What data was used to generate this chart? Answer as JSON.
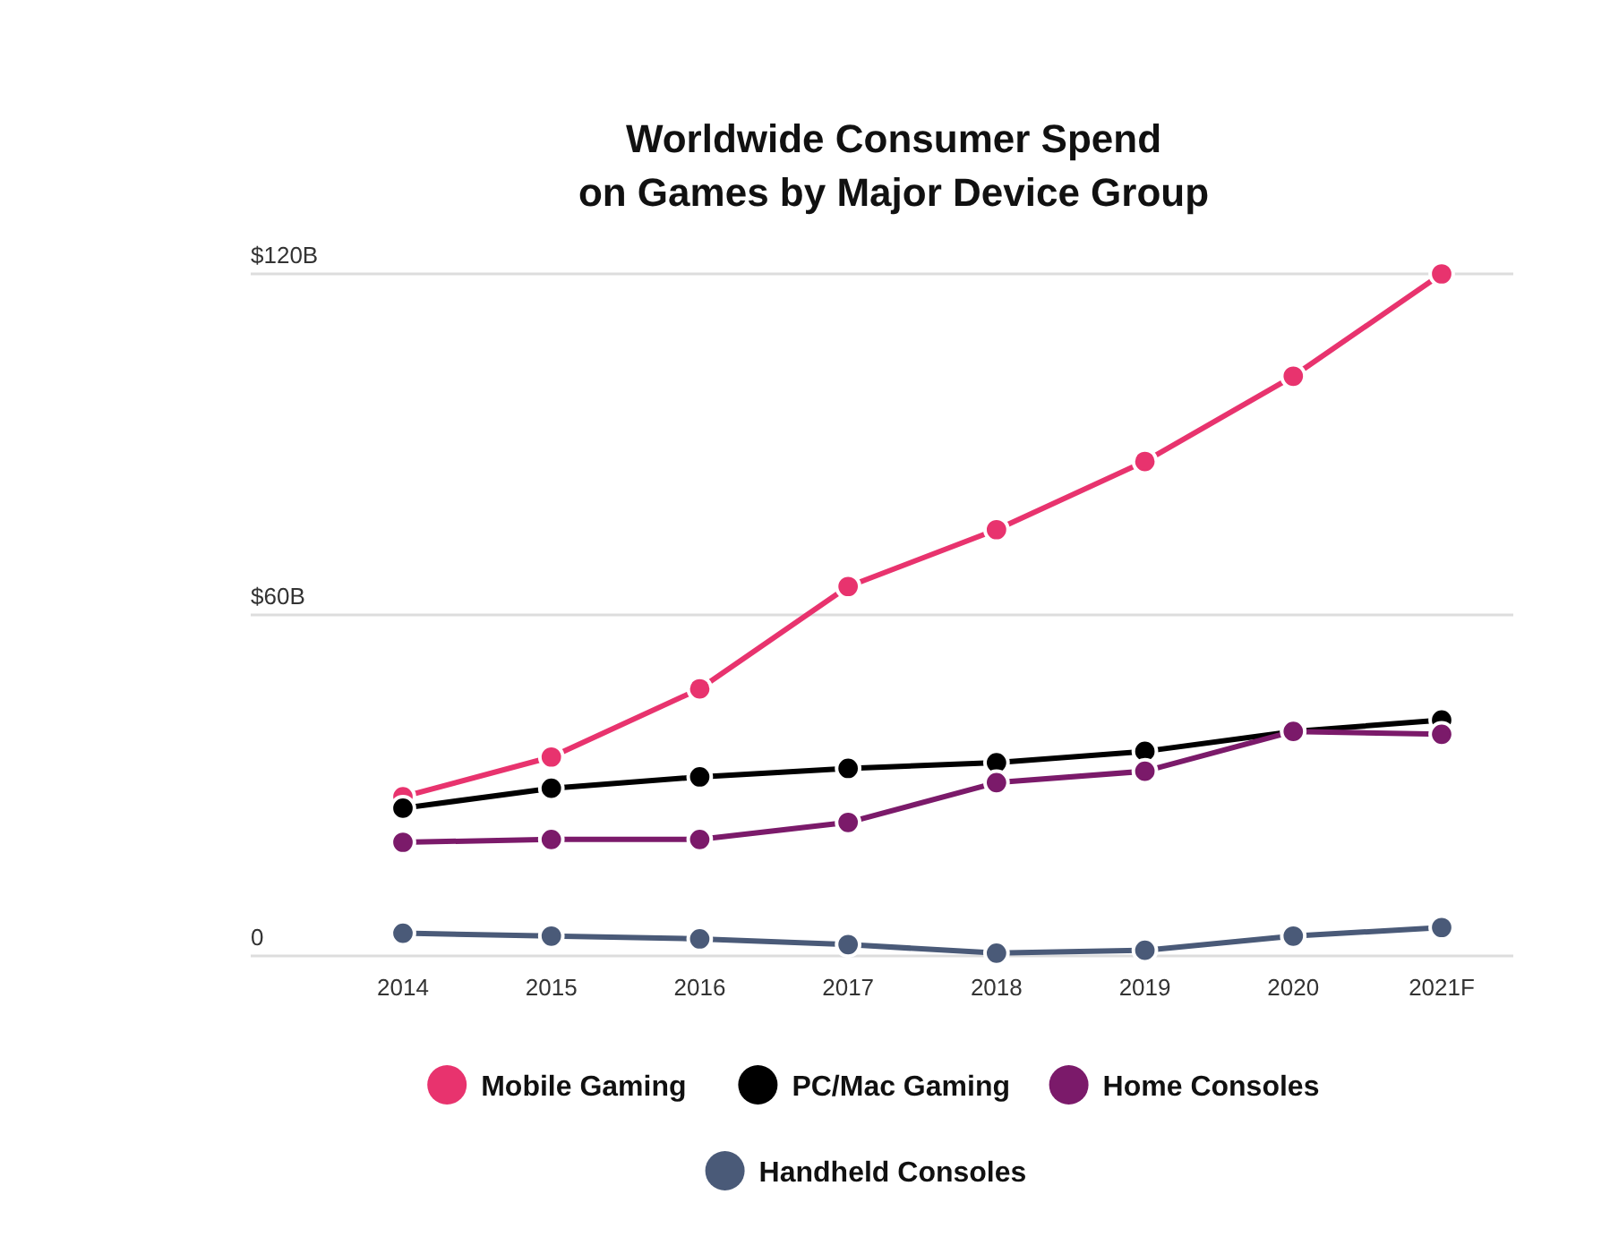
{
  "chart_data": {
    "type": "line",
    "title": "Worldwide Consumer Spend\non Games by Major Device Group",
    "categories": [
      "2014",
      "2015",
      "2016",
      "2017",
      "2018",
      "2019",
      "2020",
      "2021F"
    ],
    "series": [
      {
        "name": "Mobile Gaming",
        "color": "#e8336e",
        "values": [
          28,
          35,
          47,
          65,
          75,
          87,
          102,
          120
        ]
      },
      {
        "name": "PC/Mac Gaming",
        "color": "#000000",
        "values": [
          26,
          29.5,
          31.5,
          33,
          34,
          36,
          39.5,
          41.5
        ]
      },
      {
        "name": "Home Consoles",
        "color": "#7b1a6a",
        "values": [
          20,
          20.5,
          20.5,
          23.5,
          30.5,
          32.5,
          39.5,
          39
        ]
      },
      {
        "name": "Handheld Consoles",
        "color": "#4a5a78",
        "values": [
          4,
          3.5,
          3,
          2,
          0.5,
          1,
          3.5,
          5
        ]
      }
    ],
    "ylim": [
      0,
      120
    ],
    "yticks": [
      {
        "value": 0,
        "label": "0"
      },
      {
        "value": 60,
        "label": "$60B"
      },
      {
        "value": 120,
        "label": "$120B"
      }
    ],
    "grid": "y",
    "legend": "bottom",
    "marker": "circle",
    "line_style": "solid"
  }
}
